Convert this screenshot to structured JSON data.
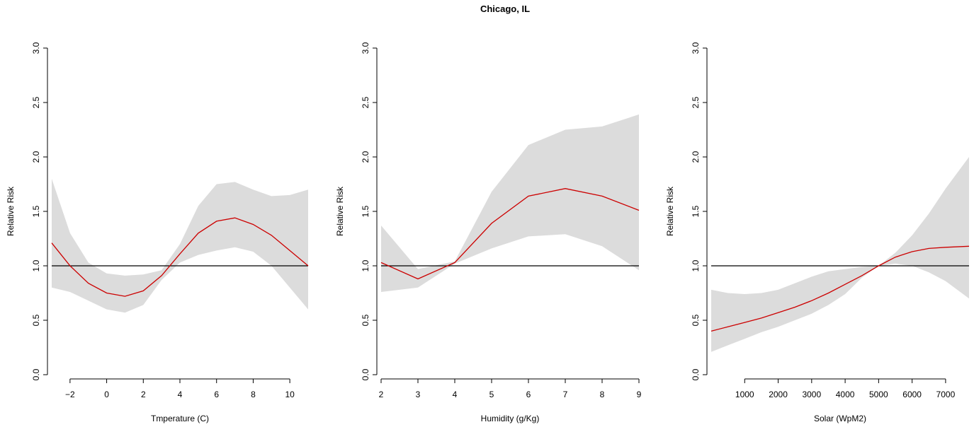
{
  "figure": {
    "title": "Chicago, IL"
  },
  "chart_data": [
    {
      "type": "line",
      "title": "",
      "xlabel": "Tmperature (C)",
      "ylabel": "Relative Risk",
      "xlim": [
        -3,
        11
      ],
      "ylim": [
        0,
        3
      ],
      "x_ticks": [
        -2,
        0,
        2,
        4,
        6,
        8,
        10
      ],
      "x_tick_labels": [
        "−2",
        "0",
        "2",
        "4",
        "6",
        "8",
        "10"
      ],
      "y_ticks": [
        0,
        0.5,
        1,
        1.5,
        2,
        2.5,
        3
      ],
      "y_tick_labels": [
        "0.0",
        "0.5",
        "1.0",
        "1.5",
        "2.0",
        "2.5",
        "3.0"
      ],
      "reference_line": 1.0,
      "colors": {
        "line": "#cc0000",
        "band": "#dcdcdc",
        "reference": "#000000"
      },
      "series": [
        {
          "x": [
            -3,
            -2,
            -1,
            0,
            1,
            2,
            3,
            4,
            5,
            6,
            7,
            8,
            9,
            10,
            11
          ],
          "values": [
            1.21,
            1.0,
            0.84,
            0.75,
            0.72,
            0.77,
            0.91,
            1.11,
            1.3,
            1.41,
            1.44,
            1.38,
            1.28,
            1.14,
            1.0
          ],
          "lower": [
            0.8,
            0.76,
            0.68,
            0.6,
            0.57,
            0.64,
            0.87,
            1.03,
            1.1,
            1.14,
            1.17,
            1.13,
            1.0,
            0.8,
            0.6
          ],
          "upper": [
            1.8,
            1.3,
            1.03,
            0.93,
            0.91,
            0.92,
            0.96,
            1.2,
            1.55,
            1.75,
            1.77,
            1.7,
            1.64,
            1.65,
            1.7
          ]
        }
      ]
    },
    {
      "type": "line",
      "title": "",
      "xlabel": "Humidity (g/Kg)",
      "ylabel": "Relative Risk",
      "xlim": [
        2,
        9
      ],
      "ylim": [
        0,
        3
      ],
      "x_ticks": [
        2,
        3,
        4,
        5,
        6,
        7,
        8,
        9
      ],
      "x_tick_labels": [
        "2",
        "3",
        "4",
        "5",
        "6",
        "7",
        "8",
        "9"
      ],
      "y_ticks": [
        0,
        0.5,
        1,
        1.5,
        2,
        2.5,
        3
      ],
      "y_tick_labels": [
        "0.0",
        "0.5",
        "1.0",
        "1.5",
        "2.0",
        "2.5",
        "3.0"
      ],
      "reference_line": 1.0,
      "colors": {
        "line": "#cc0000",
        "band": "#dcdcdc",
        "reference": "#000000"
      },
      "series": [
        {
          "x": [
            2,
            3,
            4,
            5,
            6,
            7,
            8,
            9
          ],
          "values": [
            1.03,
            0.88,
            1.03,
            1.39,
            1.64,
            1.71,
            1.64,
            1.51
          ],
          "lower": [
            0.76,
            0.8,
            1.02,
            1.16,
            1.27,
            1.29,
            1.18,
            0.96
          ],
          "upper": [
            1.37,
            0.97,
            1.04,
            1.68,
            2.11,
            2.25,
            2.28,
            2.39
          ]
        }
      ]
    },
    {
      "type": "line",
      "title": "",
      "xlabel": "Solar (WpM2)",
      "ylabel": "Relative Risk",
      "xlim": [
        0,
        7700
      ],
      "ylim": [
        0,
        3
      ],
      "x_ticks": [
        1000,
        2000,
        3000,
        4000,
        5000,
        6000,
        7000
      ],
      "x_tick_labels": [
        "1000",
        "2000",
        "3000",
        "4000",
        "5000",
        "6000",
        "7000"
      ],
      "y_ticks": [
        0,
        0.5,
        1,
        1.5,
        2,
        2.5,
        3
      ],
      "y_tick_labels": [
        "0.0",
        "0.5",
        "1.0",
        "1.5",
        "2.0",
        "2.5",
        "3.0"
      ],
      "reference_line": 1.0,
      "colors": {
        "line": "#cc0000",
        "band": "#dcdcdc",
        "reference": "#000000"
      },
      "series": [
        {
          "x": [
            0,
            500,
            1000,
            1500,
            2000,
            2500,
            3000,
            3500,
            4000,
            4500,
            5000,
            5500,
            6000,
            6500,
            7000,
            7700
          ],
          "values": [
            0.4,
            0.44,
            0.48,
            0.52,
            0.57,
            0.62,
            0.68,
            0.75,
            0.83,
            0.91,
            1.0,
            1.08,
            1.13,
            1.16,
            1.17,
            1.18
          ],
          "lower": [
            0.21,
            0.27,
            0.33,
            0.39,
            0.44,
            0.5,
            0.56,
            0.64,
            0.74,
            0.89,
            1.0,
            1.02,
            1.0,
            0.94,
            0.86,
            0.7
          ],
          "upper": [
            0.78,
            0.75,
            0.74,
            0.75,
            0.78,
            0.84,
            0.9,
            0.95,
            0.97,
            0.99,
            1.0,
            1.12,
            1.28,
            1.48,
            1.71,
            2.0
          ]
        }
      ]
    }
  ]
}
